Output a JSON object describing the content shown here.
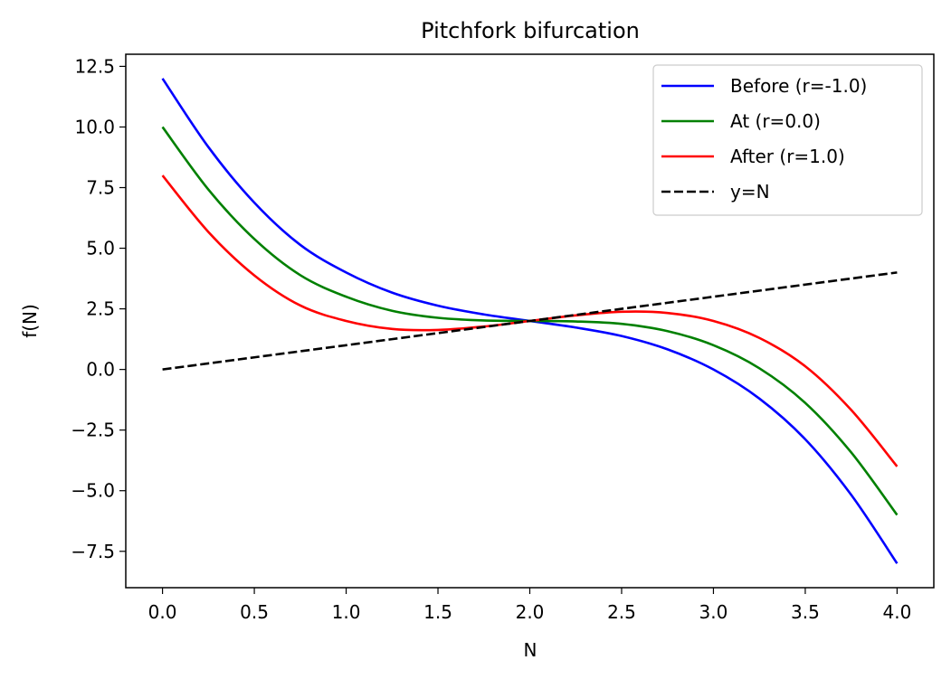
{
  "chart_data": {
    "type": "line",
    "title": "Pitchfork bifurcation",
    "xlabel": "N",
    "ylabel": "f(N)",
    "xlim": [
      -0.2,
      4.2
    ],
    "ylim": [
      -9.0,
      13.0
    ],
    "xticks": [
      0.0,
      0.5,
      1.0,
      1.5,
      2.0,
      2.5,
      3.0,
      3.5,
      4.0
    ],
    "xtick_labels": [
      "0.0",
      "0.5",
      "1.0",
      "1.5",
      "2.0",
      "2.5",
      "3.0",
      "3.5",
      "4.0"
    ],
    "yticks": [
      -7.5,
      -5.0,
      -2.5,
      0.0,
      2.5,
      5.0,
      7.5,
      10.0,
      12.5
    ],
    "ytick_labels": [
      "−7.5",
      "−5.0",
      "−2.5",
      "0.0",
      "2.5",
      "5.0",
      "7.5",
      "10.0",
      "12.5"
    ],
    "grid": false,
    "legend_position": "top-right",
    "x": [
      0.0,
      0.25,
      0.5,
      0.75,
      1.0,
      1.25,
      1.5,
      1.75,
      2.0,
      2.25,
      2.5,
      2.75,
      3.0,
      3.25,
      3.5,
      3.75,
      4.0
    ],
    "series": [
      {
        "name": "Before (r=-1.0)",
        "color": "#0000ff",
        "style": "solid",
        "values": [
          12.0,
          9.17,
          6.88,
          5.14,
          4.0,
          3.17,
          2.63,
          2.27,
          2.0,
          1.73,
          1.38,
          0.83,
          0.0,
          -1.2,
          -2.88,
          -5.17,
          -8.0
        ]
      },
      {
        "name": "At (r=0.0)",
        "color": "#008000",
        "style": "solid",
        "values": [
          10.0,
          7.42,
          5.38,
          3.89,
          3.0,
          2.42,
          2.13,
          2.02,
          2.0,
          1.98,
          1.88,
          1.58,
          1.0,
          0.05,
          -1.38,
          -3.42,
          -6.0
        ]
      },
      {
        "name": "After (r=1.0)",
        "color": "#ff0000",
        "style": "solid",
        "values": [
          8.0,
          5.67,
          3.88,
          2.64,
          2.0,
          1.67,
          1.63,
          1.77,
          2.0,
          2.23,
          2.38,
          2.33,
          2.0,
          1.3,
          0.13,
          -1.67,
          -4.0
        ]
      },
      {
        "name": "y=N",
        "color": "#000000",
        "style": "dashed",
        "values": [
          0.0,
          0.25,
          0.5,
          0.75,
          1.0,
          1.25,
          1.5,
          1.75,
          2.0,
          2.25,
          2.5,
          2.75,
          3.0,
          3.25,
          3.5,
          3.75,
          4.0
        ]
      }
    ]
  }
}
